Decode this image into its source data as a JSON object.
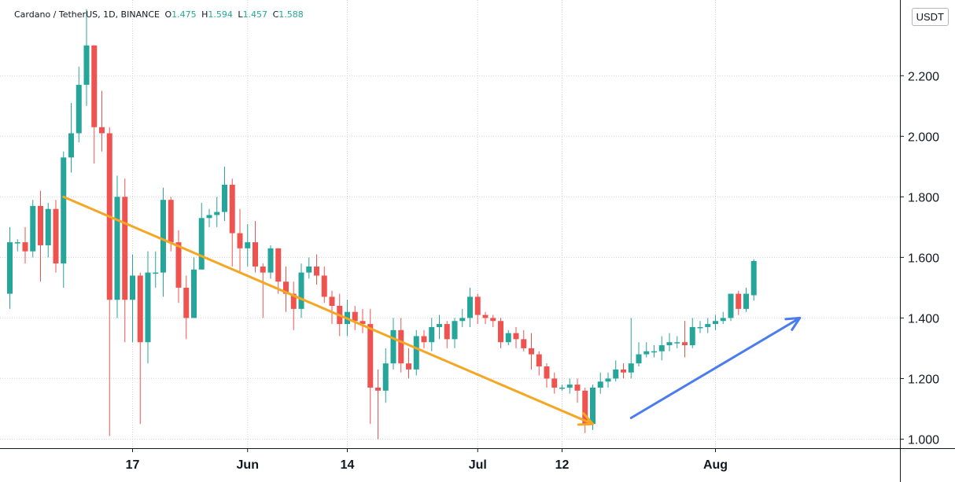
{
  "legend": {
    "symbol": "Cardano / TetherUS, 1D, BINANCE",
    "o_label": "O",
    "o_value": "1.475",
    "h_label": "H",
    "h_value": "1.594",
    "l_label": "L",
    "l_value": "1.457",
    "c_label": "C",
    "c_value": "1.588"
  },
  "unit_button": "USDT",
  "colors": {
    "up": "#26a69a",
    "down": "#ef5350",
    "grid": "#cfd3dc",
    "axis": "#131722",
    "arrow_down": "#f5a623",
    "arrow_up": "#4a7cf0"
  },
  "chart_data": {
    "type": "candlestick",
    "ylim": [
      0.97,
      2.45
    ],
    "y_ticks": [
      1.0,
      1.2,
      1.4,
      1.6,
      1.8,
      2.0,
      2.2
    ],
    "y_tick_labels": [
      "1.000",
      "1.200",
      "1.400",
      "1.600",
      "1.800",
      "2.000",
      "2.200"
    ],
    "x_ticks": [
      {
        "index": 16,
        "label": "17"
      },
      {
        "index": 31,
        "label": "Jun"
      },
      {
        "index": 44,
        "label": "14"
      },
      {
        "index": 61,
        "label": "Jul"
      },
      {
        "index": 72,
        "label": "12"
      },
      {
        "index": 92,
        "label": "Aug"
      }
    ],
    "grid": true,
    "candles": [
      [
        1.48,
        1.65,
        1.43,
        1.7
      ],
      [
        1.65,
        1.65,
        1.62,
        1.66
      ],
      [
        1.65,
        1.62,
        1.58,
        1.7
      ],
      [
        1.62,
        1.77,
        1.6,
        1.79
      ],
      [
        1.77,
        1.64,
        1.52,
        1.82
      ],
      [
        1.64,
        1.76,
        1.6,
        1.78
      ],
      [
        1.76,
        1.58,
        1.55,
        1.79
      ],
      [
        1.58,
        1.93,
        1.5,
        1.95
      ],
      [
        1.93,
        2.01,
        1.88,
        2.11
      ],
      [
        2.01,
        2.17,
        1.98,
        2.23
      ],
      [
        2.17,
        2.3,
        2.1,
        2.42
      ],
      [
        2.3,
        2.03,
        1.91,
        2.3
      ],
      [
        2.03,
        2.01,
        1.95,
        2.15
      ],
      [
        2.01,
        1.46,
        1.01,
        2.03
      ],
      [
        1.46,
        1.8,
        1.4,
        1.87
      ],
      [
        1.8,
        1.46,
        1.32,
        1.86
      ],
      [
        1.46,
        1.54,
        1.32,
        1.61
      ],
      [
        1.54,
        1.32,
        1.05,
        1.55
      ],
      [
        1.32,
        1.55,
        1.25,
        1.62
      ],
      [
        1.55,
        1.55,
        1.5,
        1.62
      ],
      [
        1.55,
        1.79,
        1.47,
        1.83
      ],
      [
        1.79,
        1.65,
        1.62,
        1.8
      ],
      [
        1.65,
        1.5,
        1.45,
        1.69
      ],
      [
        1.5,
        1.4,
        1.33,
        1.54
      ],
      [
        1.4,
        1.56,
        1.4,
        1.6
      ],
      [
        1.56,
        1.73,
        1.56,
        1.78
      ],
      [
        1.73,
        1.74,
        1.7,
        1.76
      ],
      [
        1.74,
        1.75,
        1.7,
        1.8
      ],
      [
        1.75,
        1.84,
        1.72,
        1.9
      ],
      [
        1.84,
        1.68,
        1.57,
        1.86
      ],
      [
        1.68,
        1.63,
        1.55,
        1.76
      ],
      [
        1.63,
        1.65,
        1.57,
        1.71
      ],
      [
        1.65,
        1.57,
        1.55,
        1.72
      ],
      [
        1.57,
        1.55,
        1.4,
        1.58
      ],
      [
        1.55,
        1.63,
        1.53,
        1.64
      ],
      [
        1.63,
        1.52,
        1.48,
        1.63
      ],
      [
        1.52,
        1.48,
        1.42,
        1.57
      ],
      [
        1.48,
        1.43,
        1.36,
        1.52
      ],
      [
        1.43,
        1.55,
        1.4,
        1.58
      ],
      [
        1.55,
        1.57,
        1.53,
        1.6
      ],
      [
        1.57,
        1.54,
        1.51,
        1.61
      ],
      [
        1.54,
        1.47,
        1.45,
        1.57
      ],
      [
        1.47,
        1.44,
        1.38,
        1.49
      ],
      [
        1.44,
        1.38,
        1.34,
        1.48
      ],
      [
        1.38,
        1.42,
        1.34,
        1.46
      ],
      [
        1.42,
        1.39,
        1.36,
        1.44
      ],
      [
        1.39,
        1.38,
        1.35,
        1.43
      ],
      [
        1.38,
        1.17,
        1.05,
        1.43
      ],
      [
        1.17,
        1.16,
        1.0,
        1.23
      ],
      [
        1.16,
        1.25,
        1.12,
        1.3
      ],
      [
        1.25,
        1.36,
        1.23,
        1.4
      ],
      [
        1.36,
        1.25,
        1.22,
        1.4
      ],
      [
        1.25,
        1.23,
        1.2,
        1.3
      ],
      [
        1.23,
        1.34,
        1.21,
        1.36
      ],
      [
        1.34,
        1.32,
        1.3,
        1.36
      ],
      [
        1.32,
        1.37,
        1.29,
        1.4
      ],
      [
        1.37,
        1.38,
        1.33,
        1.41
      ],
      [
        1.38,
        1.33,
        1.3,
        1.39
      ],
      [
        1.33,
        1.39,
        1.3,
        1.4
      ],
      [
        1.39,
        1.4,
        1.37,
        1.43
      ],
      [
        1.4,
        1.47,
        1.37,
        1.5
      ],
      [
        1.47,
        1.41,
        1.38,
        1.48
      ],
      [
        1.41,
        1.4,
        1.38,
        1.42
      ],
      [
        1.4,
        1.39,
        1.37,
        1.41
      ],
      [
        1.39,
        1.32,
        1.3,
        1.4
      ],
      [
        1.32,
        1.35,
        1.31,
        1.36
      ],
      [
        1.35,
        1.33,
        1.3,
        1.37
      ],
      [
        1.33,
        1.3,
        1.29,
        1.36
      ],
      [
        1.3,
        1.28,
        1.23,
        1.35
      ],
      [
        1.28,
        1.24,
        1.21,
        1.29
      ],
      [
        1.24,
        1.2,
        1.17,
        1.25
      ],
      [
        1.2,
        1.17,
        1.15,
        1.22
      ],
      [
        1.17,
        1.17,
        1.16,
        1.18
      ],
      [
        1.17,
        1.18,
        1.15,
        1.2
      ],
      [
        1.18,
        1.16,
        1.12,
        1.2
      ],
      [
        1.16,
        1.05,
        1.02,
        1.17
      ],
      [
        1.05,
        1.17,
        1.03,
        1.18
      ],
      [
        1.17,
        1.19,
        1.15,
        1.22
      ],
      [
        1.19,
        1.2,
        1.17,
        1.22
      ],
      [
        1.2,
        1.23,
        1.19,
        1.26
      ],
      [
        1.23,
        1.22,
        1.2,
        1.25
      ],
      [
        1.22,
        1.25,
        1.2,
        1.4
      ],
      [
        1.25,
        1.28,
        1.24,
        1.32
      ],
      [
        1.28,
        1.29,
        1.27,
        1.32
      ],
      [
        1.29,
        1.29,
        1.27,
        1.31
      ],
      [
        1.29,
        1.31,
        1.26,
        1.34
      ],
      [
        1.31,
        1.32,
        1.29,
        1.35
      ],
      [
        1.32,
        1.32,
        1.3,
        1.34
      ],
      [
        1.32,
        1.31,
        1.27,
        1.39
      ],
      [
        1.31,
        1.37,
        1.3,
        1.4
      ],
      [
        1.37,
        1.37,
        1.35,
        1.39
      ],
      [
        1.37,
        1.38,
        1.35,
        1.4
      ],
      [
        1.38,
        1.39,
        1.36,
        1.41
      ],
      [
        1.39,
        1.4,
        1.38,
        1.42
      ],
      [
        1.4,
        1.48,
        1.39,
        1.48
      ],
      [
        1.48,
        1.43,
        1.41,
        1.49
      ],
      [
        1.43,
        1.48,
        1.42,
        1.5
      ],
      [
        1.475,
        1.588,
        1.457,
        1.594
      ]
    ],
    "annotations": [
      {
        "type": "arrow",
        "color": "arrow_down",
        "from": [
          7,
          1.8
        ],
        "to": [
          76,
          1.05
        ]
      },
      {
        "type": "arrow",
        "color": "arrow_up",
        "from": [
          81,
          1.07
        ],
        "to": [
          103,
          1.4
        ]
      }
    ]
  }
}
